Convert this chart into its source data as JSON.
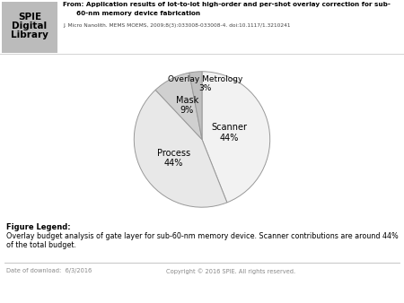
{
  "slices": [
    44,
    44,
    9,
    3
  ],
  "colors": [
    "#f2f2f2",
    "#e8e8e8",
    "#d0d0d0",
    "#c0c0c0"
  ],
  "edge_color": "#999999",
  "header_line1": "From: Application results of lot-to-lot high-order and per-shot overlay correction for sub-",
  "header_line2": "60-nm memory device fabrication",
  "header_journal": "J. Micro Nanolith. MEMS MOEMS, 2009;8(3):033008-033008-4. doi:10.1117/1.3210241",
  "spie_line1": "SPIE",
  "spie_line2": "Digital",
  "spie_line3": "Library",
  "figure_legend_title": "Figure Legend:",
  "figure_legend_text": "Overlay budget analysis of gate layer for sub-60-nm memory device. Scanner contributions are around 44% of the total budget.",
  "footer_date": "Date of download:  6/3/2016",
  "footer_copyright": "Copyright © 2016 SPIE. All rights reserved.",
  "start_angle": 90,
  "label_scanner": "Scanner\n44%",
  "label_process": "Process\n44%",
  "label_mask": "Mask\n9%",
  "label_overlay": "Overlay Metrology\n3%",
  "counterclock": false
}
